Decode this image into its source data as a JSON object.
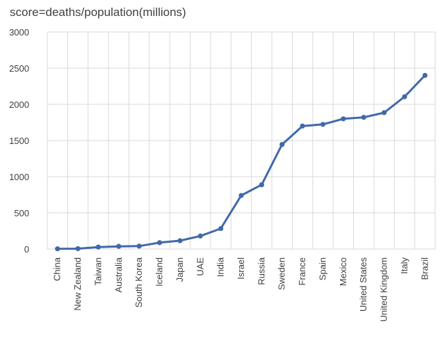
{
  "chart_data": {
    "type": "line",
    "title": "score=deaths/population(millions)",
    "xlabel": "",
    "ylabel": "",
    "ylim": [
      0,
      3000
    ],
    "yticks": [
      "0",
      "500",
      "1000",
      "1500",
      "2000",
      "2500",
      "3000"
    ],
    "grid": "vertical and horizontal",
    "series_color": "#4169AA",
    "categories": [
      "China",
      "New Zealand",
      "Taiwan",
      "Australia",
      "South Korea",
      "Iceland",
      "Japan",
      "UAE",
      "India",
      "Israel",
      "Russia",
      "Sweden",
      "France",
      "Spain",
      "Mexico",
      "United States",
      "United Kingdom",
      "Italy",
      "Brazil"
    ],
    "series": [
      {
        "values": [
          3,
          5,
          27,
          37,
          40,
          88,
          115,
          180,
          283,
          740,
          888,
          1445,
          1700,
          1723,
          1800,
          1820,
          1885,
          2105,
          2400
        ]
      }
    ]
  }
}
